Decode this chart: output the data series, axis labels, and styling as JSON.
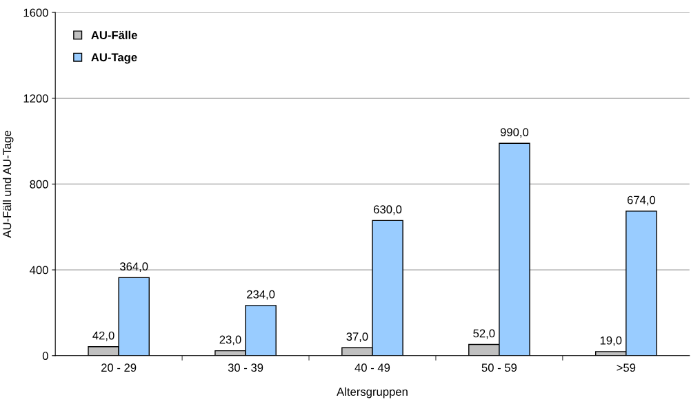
{
  "chart_data": {
    "type": "bar",
    "xlabel": "Altersgruppen",
    "ylabel": "AU-Fäll und AU-Tage",
    "categories": [
      "20 - 29",
      "30 - 39",
      "40 - 49",
      "50 - 59",
      ">59"
    ],
    "series": [
      {
        "name": "AU-Fälle",
        "color": "#c0c0c0",
        "values": [
          42,
          23,
          37,
          52,
          19
        ],
        "value_labels": [
          "42,0",
          "23,0",
          "37,0",
          "52,0",
          "19,0"
        ]
      },
      {
        "name": "AU-Tage",
        "color": "#99ccff",
        "values": [
          364,
          234,
          630,
          990,
          674
        ],
        "value_labels": [
          "364,0",
          "234,0",
          "630,0",
          "990,0",
          "674,0"
        ]
      }
    ],
    "ylim": [
      0,
      1600
    ],
    "yticks": [
      0,
      400,
      800,
      1200,
      1600
    ],
    "grid": "y",
    "legend": "top left"
  }
}
